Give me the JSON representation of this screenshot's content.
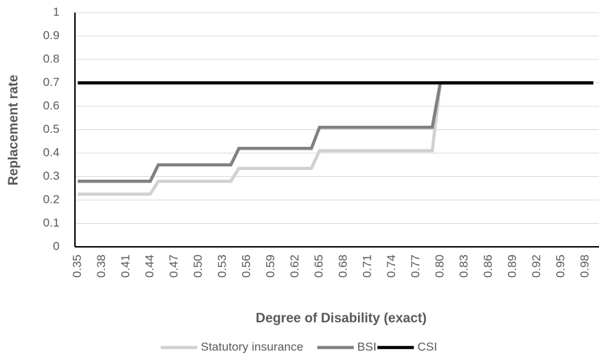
{
  "chart_data": {
    "type": "line",
    "x_label": "Degree of Disability (exact)",
    "y_label": "Replacement rate",
    "categories": [
      "0.35",
      null,
      null,
      "0.38",
      null,
      null,
      "0.41",
      null,
      null,
      "0.44",
      null,
      null,
      "0.47",
      null,
      null,
      "0.50",
      null,
      null,
      "0.53",
      null,
      null,
      "0.56",
      null,
      null,
      "0.59",
      null,
      null,
      "0.62",
      null,
      null,
      "0.65",
      null,
      null,
      "0.68",
      null,
      null,
      "0.71",
      null,
      null,
      "0.74",
      null,
      null,
      "0.77",
      null,
      null,
      "0.80",
      null,
      null,
      "0.83",
      null,
      null,
      "0.86",
      null,
      null,
      "0.89",
      null,
      null,
      "0.92",
      null,
      null,
      "0.95",
      null,
      null,
      "0.98",
      null
    ],
    "series": [
      {
        "name": "Statutory insurance",
        "color": "#d0d0d0",
        "values": [
          0.225,
          0.225,
          0.225,
          0.225,
          0.225,
          0.225,
          0.225,
          0.225,
          0.225,
          0.225,
          0.28,
          0.28,
          0.28,
          0.28,
          0.28,
          0.28,
          0.28,
          0.28,
          0.28,
          0.28,
          0.335,
          0.335,
          0.335,
          0.335,
          0.335,
          0.335,
          0.335,
          0.335,
          0.335,
          0.335,
          0.41,
          0.41,
          0.41,
          0.41,
          0.41,
          0.41,
          0.41,
          0.41,
          0.41,
          0.41,
          0.41,
          0.41,
          0.41,
          0.41,
          0.41,
          0.7,
          0.7,
          0.7,
          0.7,
          0.7,
          0.7,
          0.7,
          0.7,
          0.7,
          0.7,
          0.7,
          0.7,
          0.7,
          0.7,
          0.7,
          0.7,
          0.7,
          0.7,
          0.7,
          0.7
        ]
      },
      {
        "name": "BSI",
        "color": "#808080",
        "values": [
          0.28,
          0.28,
          0.28,
          0.28,
          0.28,
          0.28,
          0.28,
          0.28,
          0.28,
          0.28,
          0.35,
          0.35,
          0.35,
          0.35,
          0.35,
          0.35,
          0.35,
          0.35,
          0.35,
          0.35,
          0.42,
          0.42,
          0.42,
          0.42,
          0.42,
          0.42,
          0.42,
          0.42,
          0.42,
          0.42,
          0.51,
          0.51,
          0.51,
          0.51,
          0.51,
          0.51,
          0.51,
          0.51,
          0.51,
          0.51,
          0.51,
          0.51,
          0.51,
          0.51,
          0.51,
          0.7,
          0.7,
          0.7,
          0.7,
          0.7,
          0.7,
          0.7,
          0.7,
          0.7,
          0.7,
          0.7,
          0.7,
          0.7,
          0.7,
          0.7,
          0.7,
          0.7,
          0.7,
          0.7,
          0.7
        ]
      },
      {
        "name": "CSI",
        "color": "#000000",
        "values": [
          0.7,
          0.7,
          0.7,
          0.7,
          0.7,
          0.7,
          0.7,
          0.7,
          0.7,
          0.7,
          0.7,
          0.7,
          0.7,
          0.7,
          0.7,
          0.7,
          0.7,
          0.7,
          0.7,
          0.7,
          0.7,
          0.7,
          0.7,
          0.7,
          0.7,
          0.7,
          0.7,
          0.7,
          0.7,
          0.7,
          0.7,
          0.7,
          0.7,
          0.7,
          0.7,
          0.7,
          0.7,
          0.7,
          0.7,
          0.7,
          0.7,
          0.7,
          0.7,
          0.7,
          0.7,
          0.7,
          0.7,
          0.7,
          0.7,
          0.7,
          0.7,
          0.7,
          0.7,
          0.7,
          0.7,
          0.7,
          0.7,
          0.7,
          0.7,
          0.7,
          0.7,
          0.7,
          0.7,
          0.7,
          0.7
        ]
      }
    ],
    "ylim": [
      0,
      1
    ],
    "yticks": [
      0,
      0.1,
      0.2,
      0.3,
      0.4,
      0.5,
      0.6,
      0.7,
      0.8,
      0.9,
      1
    ],
    "grid": true,
    "legend": "bottom"
  }
}
